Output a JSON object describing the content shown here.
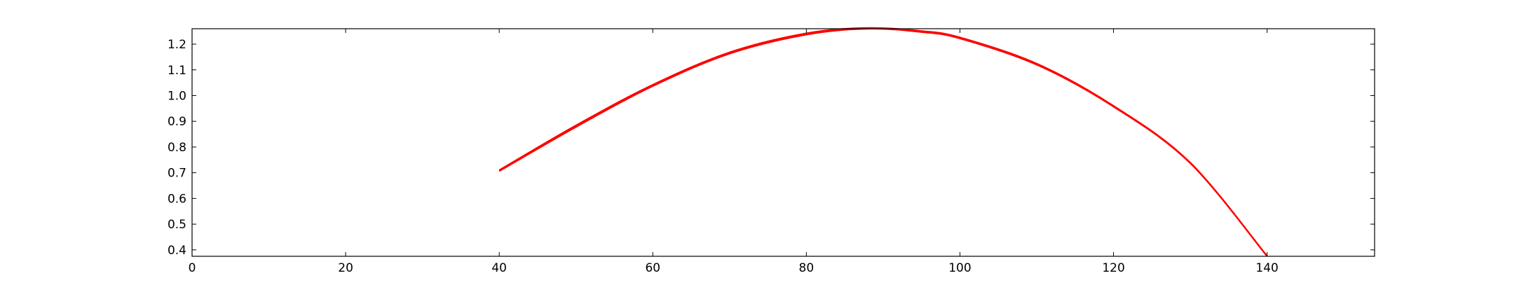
{
  "chart_data": {
    "type": "line",
    "title": "",
    "xlabel": "",
    "ylabel": "",
    "xlim": [
      0,
      154
    ],
    "ylim": [
      0.375,
      1.26
    ],
    "xticks": [
      0,
      20,
      40,
      60,
      80,
      100,
      120,
      140
    ],
    "xtick_labels": [
      "0",
      "20",
      "40",
      "60",
      "80",
      "100",
      "120",
      "140"
    ],
    "yticks": [
      0.4,
      0.5,
      0.6,
      0.7,
      0.8,
      0.9,
      1.0,
      1.1,
      1.2
    ],
    "ytick_labels": [
      "0.4",
      "0.5",
      "0.6",
      "0.7",
      "0.8",
      "0.9",
      "1.0",
      "1.1",
      "1.2"
    ],
    "grid": false,
    "series": [
      {
        "name": "curve-1",
        "color": "#ff0000",
        "x": [
          40,
          50,
          60,
          70,
          80,
          88,
          95,
          100,
          110,
          120,
          130,
          140
        ],
        "y": [
          0.706,
          0.878,
          1.037,
          1.163,
          1.237,
          1.26,
          1.247,
          1.222,
          1.12,
          0.957,
          0.737,
          0.375
        ]
      },
      {
        "name": "curve-2",
        "color": "#ff0000",
        "x": [
          40,
          50,
          60,
          70,
          80,
          88,
          95,
          100,
          110,
          120,
          130,
          140
        ],
        "y": [
          0.71,
          0.884,
          1.042,
          1.168,
          1.242,
          1.263,
          1.251,
          1.226,
          1.124,
          0.96,
          0.739,
          0.376
        ]
      }
    ]
  }
}
